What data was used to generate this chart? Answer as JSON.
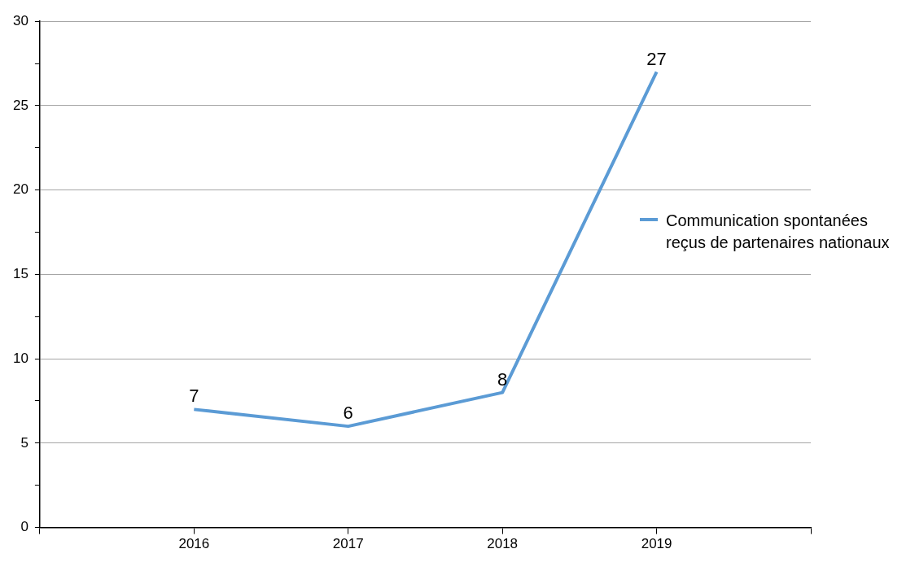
{
  "chart_data": {
    "type": "line",
    "categories": [
      "2016",
      "2017",
      "2018",
      "2019"
    ],
    "series": [
      {
        "name": "Communication spontanées reçus de partenaires nationaux",
        "color": "#5b9bd5",
        "values": [
          7,
          6,
          8,
          27
        ]
      }
    ],
    "ylim": [
      0,
      30
    ],
    "yticks": [
      0,
      {
        "value": 2.5,
        "label": null
      },
      5,
      {
        "value": 7.5,
        "label": null
      },
      10,
      {
        "value": 12.5,
        "label": null
      },
      15,
      {
        "value": 17.5,
        "label": null
      },
      20,
      {
        "value": 22.5,
        "label": null
      },
      25,
      {
        "value": 27.5,
        "label": null
      },
      30
    ],
    "grid": "y",
    "legend": "right",
    "data_labels": true,
    "marker": "none",
    "line_style": "solid"
  }
}
